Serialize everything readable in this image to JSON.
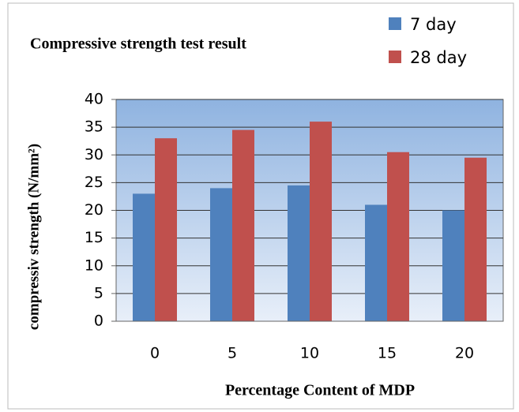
{
  "chart_data": {
    "type": "bar",
    "title": "Compressive strength test result",
    "x_label": "Percentage Content of MDP",
    "y_label": "compressiv strength (N/mm²)",
    "categories": [
      "0",
      "5",
      "10",
      "15",
      "20"
    ],
    "series": [
      {
        "name": "7 day",
        "color": "#4f81bd",
        "values": [
          23,
          24,
          24.5,
          21,
          20
        ]
      },
      {
        "name": "28 day",
        "color": "#c0504d",
        "values": [
          33,
          34.5,
          36,
          30.5,
          29.5
        ]
      }
    ],
    "ylim": [
      0,
      40
    ],
    "yticks": [
      0,
      5,
      10,
      15,
      20,
      25,
      30,
      35,
      40
    ],
    "grid": true,
    "legend": "top-right"
  }
}
